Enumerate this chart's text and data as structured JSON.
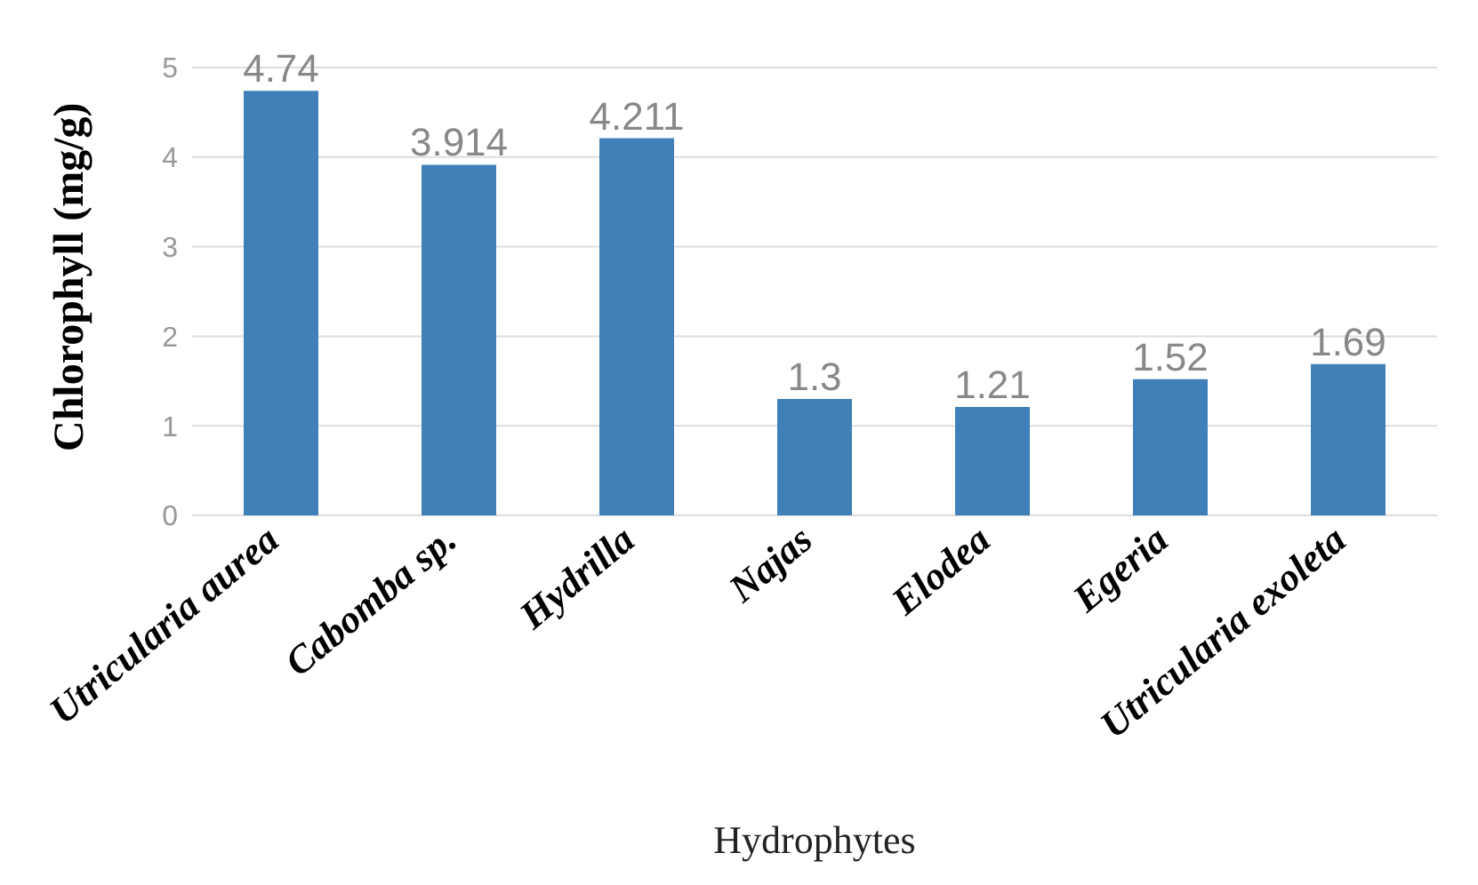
{
  "chart_data": {
    "type": "bar",
    "xlabel": "Hydrophytes",
    "ylabel": "Chlorophyll (mg/g)",
    "categories": [
      "Utricularia aurea",
      "Cabomba sp.",
      "Hydrilla",
      "Najas",
      "Elodea",
      "Egeria",
      "Utricularia exoleta"
    ],
    "values": [
      4.74,
      3.914,
      4.211,
      1.3,
      1.21,
      1.52,
      1.69
    ],
    "color": "#3f80b8",
    "ylim": [
      0,
      5
    ],
    "yticks": [
      0,
      1,
      2,
      3,
      4,
      5
    ],
    "grid": "y",
    "data_labels": true
  }
}
